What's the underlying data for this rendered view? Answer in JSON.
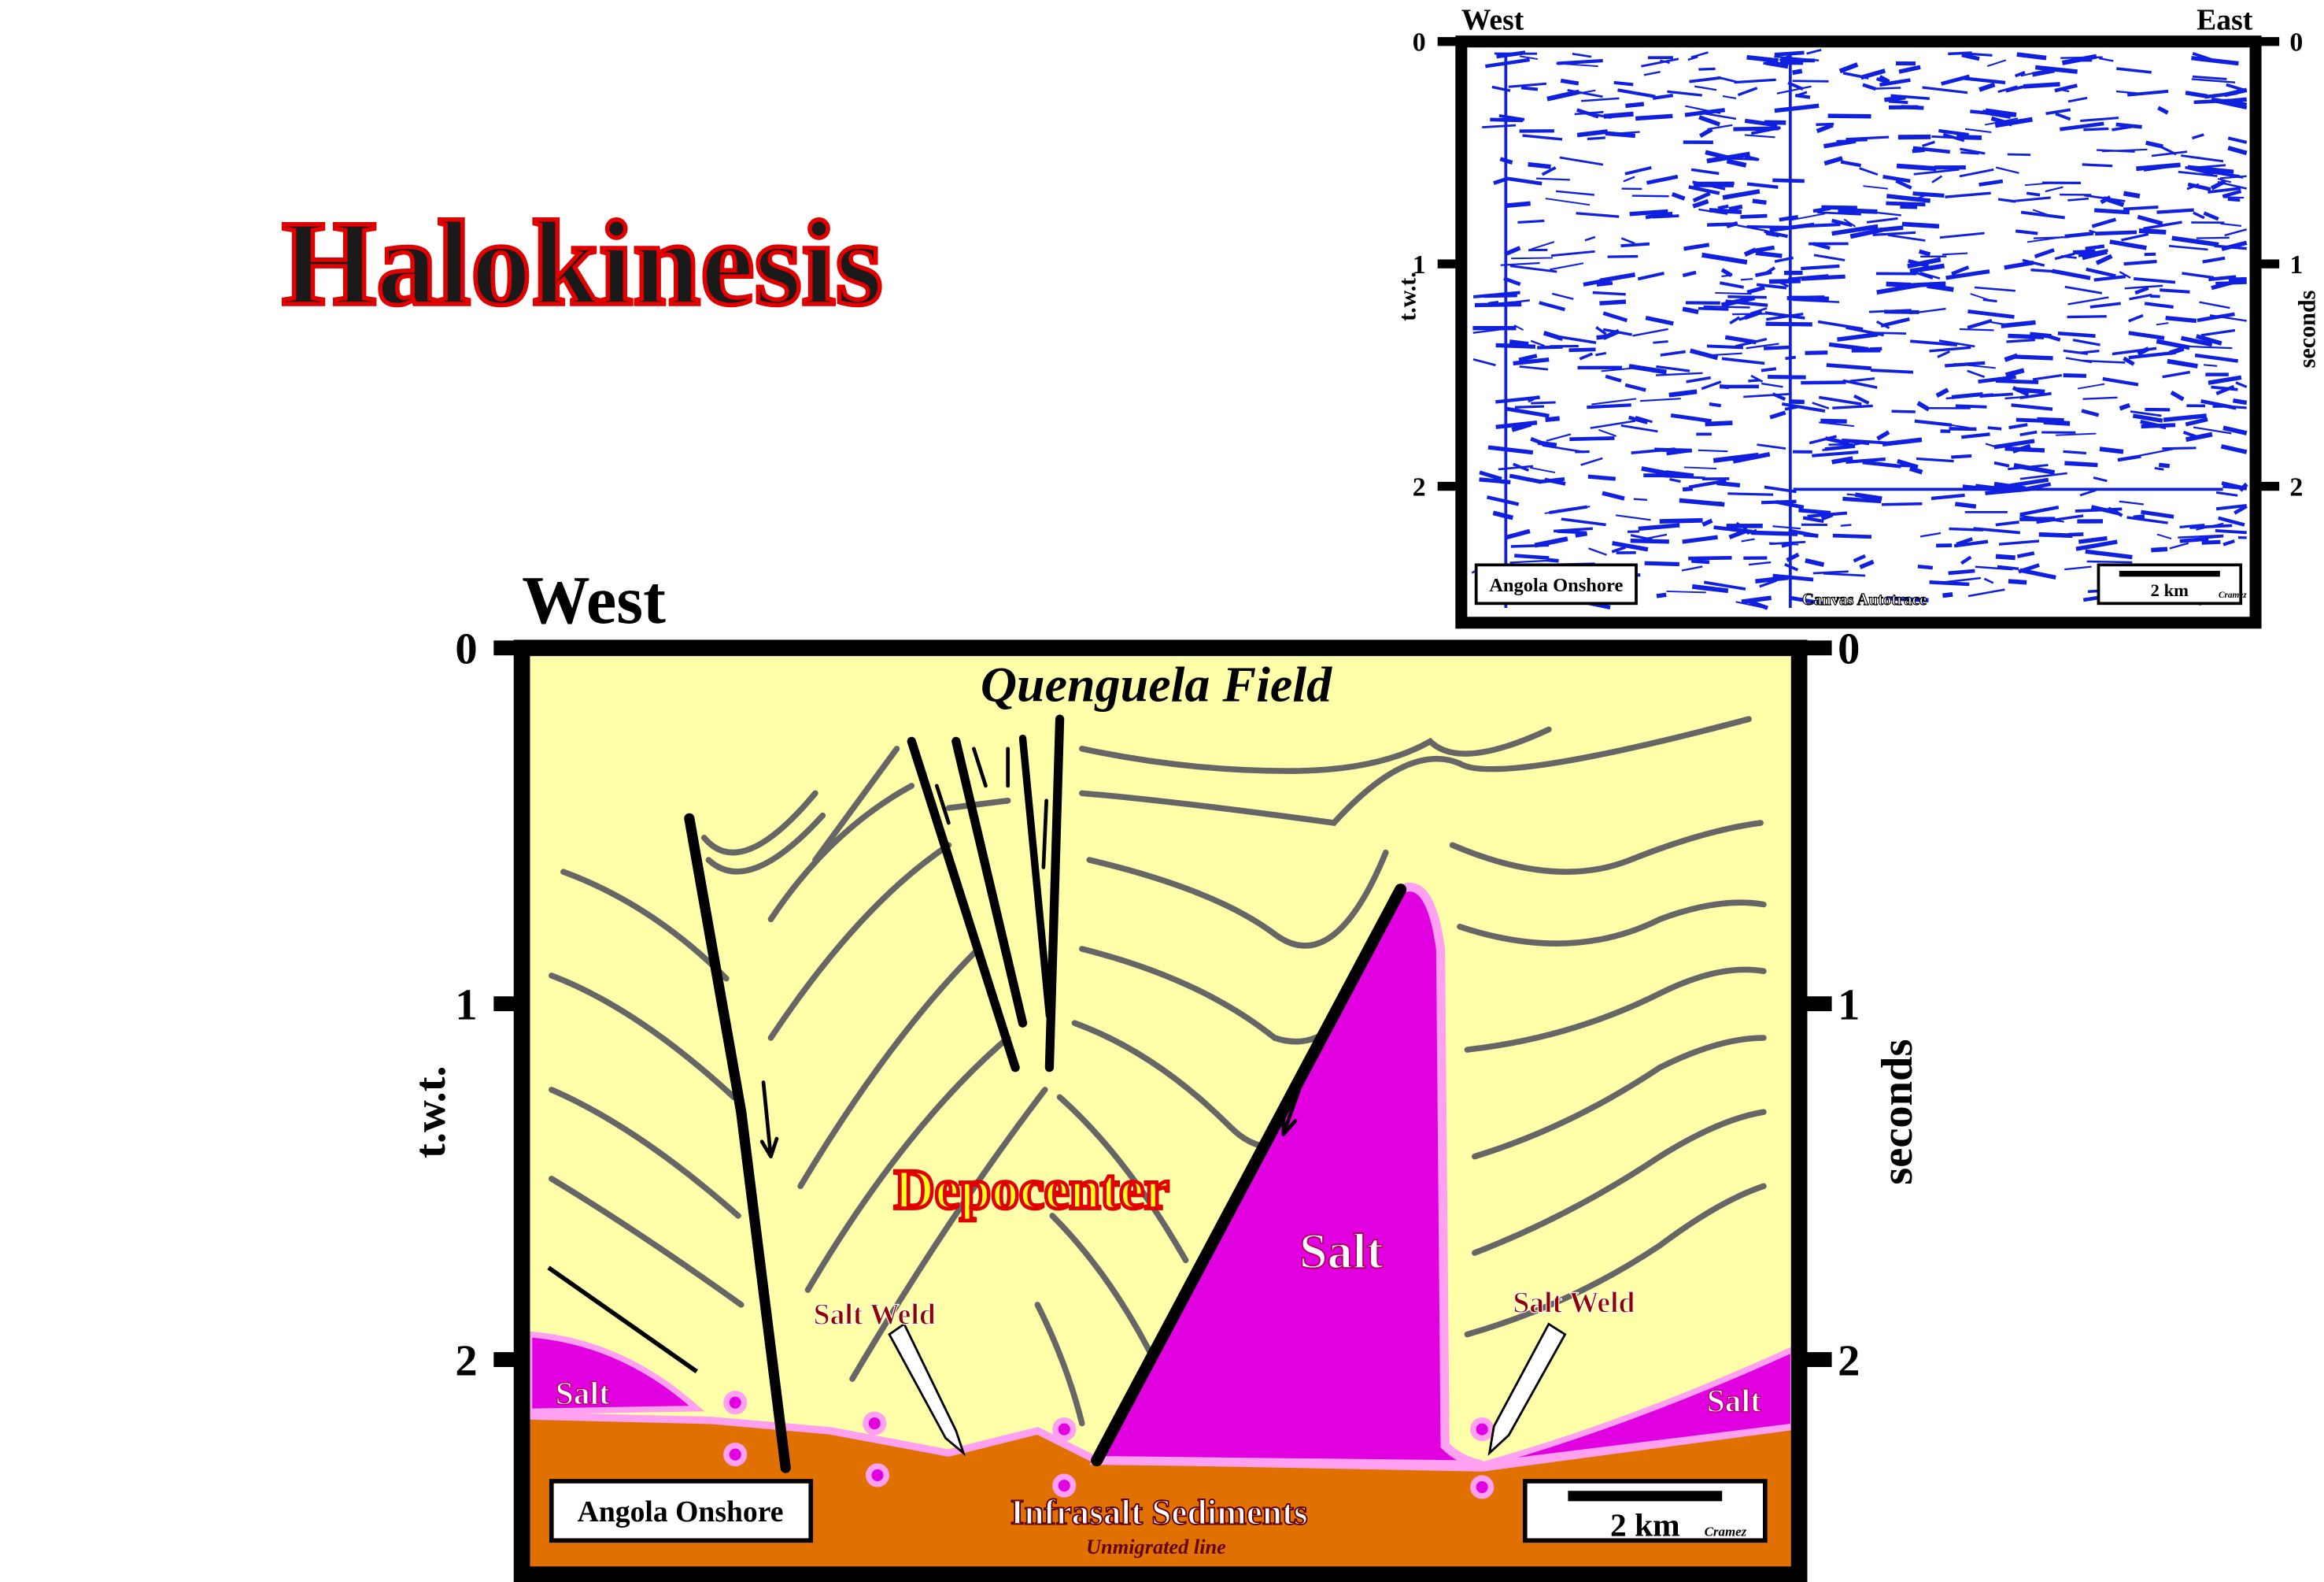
{
  "title": "Halokinesis",
  "seismic_panel": {
    "west": "West",
    "east": "East",
    "ticks": [
      0,
      1,
      2
    ],
    "left_axis_label": "t.w.t.",
    "right_axis_label": "seconds",
    "location": "Angola Onshore",
    "software": "Canvas Autotrace",
    "scale": "2 km",
    "author": "Cramez"
  },
  "interpretation_panel": {
    "west": "West",
    "ticks": [
      0,
      1,
      2
    ],
    "left_axis_label": "t.w.t.",
    "right_axis_label": "seconds",
    "field": "Quenguela Field",
    "depocenter": "Depocenter",
    "salt_labels": [
      "Salt",
      "Salt",
      "Salt"
    ],
    "salt_weld_labels": [
      "Salt Weld",
      "Salt Weld"
    ],
    "infrasalt": "Infrasalt Sediments",
    "note": "Unmigrated line",
    "location": "Angola Onshore",
    "scale": "2 km",
    "author": "Cramez"
  }
}
